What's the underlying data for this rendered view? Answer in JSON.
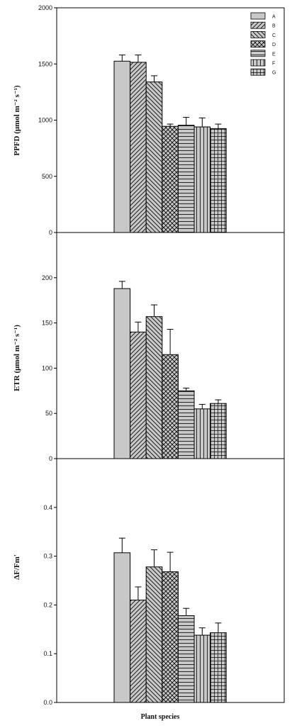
{
  "figure": {
    "xlabel": "Plant species"
  },
  "legend": {
    "placement": "top-right",
    "entries": [
      "A",
      "B",
      "C",
      "D",
      "E",
      "F",
      "G"
    ]
  },
  "patterns": [
    "solid",
    "diag-right",
    "diag-left",
    "crosshatch",
    "horizontal",
    "vertical",
    "grid"
  ],
  "colors": {
    "bar_fill": "#c8c8c8",
    "bar_stroke": "#000000",
    "axis": "#000000"
  },
  "chart_data": [
    {
      "type": "bar",
      "ylabel": "PPFD (μmol m⁻² s⁻¹)",
      "categories": [
        "A",
        "B",
        "C",
        "D",
        "E",
        "F",
        "G"
      ],
      "values": [
        1525,
        1515,
        1340,
        945,
        955,
        940,
        925
      ],
      "errors": [
        55,
        65,
        55,
        20,
        70,
        80,
        40
      ],
      "ylim": [
        0,
        2000
      ],
      "yticks": [
        0,
        500,
        1000,
        1500,
        2000
      ],
      "ytick_labels": [
        "0",
        "500",
        "1000",
        "1500",
        "2000"
      ]
    },
    {
      "type": "bar",
      "ylabel": "ETR (μmol m⁻² s⁻¹)",
      "categories": [
        "A",
        "B",
        "C",
        "D",
        "E",
        "F",
        "G"
      ],
      "values": [
        188,
        140,
        157,
        115,
        75,
        55,
        61
      ],
      "errors": [
        8,
        11,
        13,
        28,
        3,
        5,
        4
      ],
      "ylim": [
        0,
        250
      ],
      "yticks": [
        0,
        50,
        100,
        150,
        200
      ],
      "ytick_labels": [
        "0",
        "50",
        "100",
        "150",
        "200"
      ]
    },
    {
      "type": "bar",
      "ylabel": "ΔF/Fm'",
      "categories": [
        "A",
        "B",
        "C",
        "D",
        "E",
        "F",
        "G"
      ],
      "values": [
        0.307,
        0.21,
        0.278,
        0.268,
        0.178,
        0.138,
        0.143
      ],
      "errors": [
        0.03,
        0.027,
        0.035,
        0.04,
        0.015,
        0.015,
        0.02
      ],
      "ylim": [
        0,
        0.5
      ],
      "yticks": [
        0,
        0.1,
        0.2,
        0.3,
        0.4
      ],
      "ytick_labels": [
        "0.0",
        "0.1",
        "0.2",
        "0.3",
        "0.4"
      ]
    }
  ]
}
